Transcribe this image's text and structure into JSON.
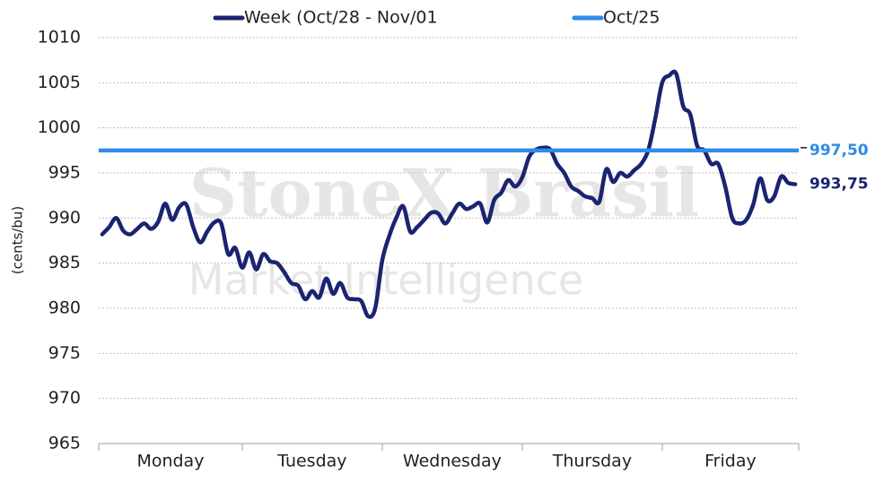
{
  "chart_data": {
    "type": "line",
    "y_axis_label": "(cents/bu)",
    "watermark": [
      "StoneX Brasil",
      "Market Intelligence"
    ],
    "ylim": [
      965,
      1010
    ],
    "yticks": [
      965,
      970,
      975,
      980,
      985,
      990,
      995,
      1000,
      1005,
      1010
    ],
    "grid": true,
    "legend": "top",
    "categories": [
      null,
      null,
      null,
      null,
      null,
      null,
      null,
      null,
      null,
      null,
      "Monday",
      null,
      null,
      null,
      null,
      null,
      null,
      null,
      null,
      null,
      null,
      null,
      null,
      null,
      null,
      null,
      null,
      null,
      null,
      null,
      "Tuesday",
      null,
      null,
      null,
      null,
      null,
      null,
      null,
      null,
      null,
      null,
      null,
      null,
      null,
      null,
      null,
      null,
      null,
      null,
      null,
      "Wednesday",
      null,
      null,
      null,
      null,
      null,
      null,
      null,
      null,
      null,
      null,
      null,
      null,
      null,
      null,
      null,
      null,
      null,
      null,
      null,
      "Thursday",
      null,
      null,
      null,
      null,
      null,
      null,
      null,
      null,
      null,
      null,
      null,
      null,
      null,
      null,
      null,
      null,
      null,
      null,
      null,
      "Friday",
      null,
      null,
      null,
      null,
      null,
      null,
      null,
      null,
      null
    ],
    "series": [
      {
        "name": "Week (Oct/28 - Nov/01",
        "color": "#1a2470",
        "values": [
          988.2,
          989,
          990,
          988.6,
          988.2,
          988.8,
          989.4,
          988.8,
          989.6,
          991.6,
          989.8,
          991.2,
          991.5,
          989,
          987.3,
          988.5,
          989.5,
          989.4,
          986,
          986.7,
          984.5,
          986.2,
          984.3,
          986,
          985.2,
          985,
          984,
          982.8,
          982.5,
          981,
          981.9,
          981.2,
          983.3,
          981.6,
          982.8,
          981.2,
          981,
          980.8,
          979.1,
          980,
          985.3,
          988,
          990,
          991.3,
          988.5,
          989,
          989.8,
          990.6,
          990.5,
          989.4,
          990.5,
          991.6,
          991,
          991.3,
          991.6,
          989.5,
          992,
          992.8,
          994.2,
          993.5,
          994.5,
          996.8,
          997.6,
          997.8,
          997.6,
          996,
          995,
          993.5,
          993,
          992.4,
          992.2,
          991.8,
          995.4,
          994,
          995,
          994.6,
          995.3,
          996,
          997.5,
          1001,
          1005,
          1005.8,
          1006,
          1002.4,
          1001.5,
          998,
          997.5,
          996,
          996,
          993.5,
          990,
          989.4,
          989.8,
          991.5,
          994.4,
          992,
          992.4,
          994.6,
          993.9,
          993.75
        ],
        "value_labels": [
          null,
          null,
          null,
          null,
          null,
          null,
          null,
          null,
          null,
          null,
          null,
          null,
          null,
          null,
          null,
          null,
          null,
          null,
          null,
          null,
          null,
          null,
          null,
          null,
          null,
          null,
          null,
          null,
          null,
          null,
          null,
          null,
          null,
          null,
          null,
          null,
          null,
          null,
          null,
          null,
          null,
          null,
          null,
          null,
          null,
          null,
          null,
          null,
          null,
          null,
          null,
          null,
          null,
          null,
          null,
          null,
          null,
          null,
          null,
          null,
          null,
          null,
          null,
          null,
          null,
          null,
          null,
          null,
          null,
          null,
          null,
          null,
          null,
          null,
          null,
          null,
          null,
          null,
          null,
          null,
          null,
          null,
          null,
          null,
          null,
          null,
          null,
          null,
          null,
          null,
          null,
          null,
          null,
          null,
          null,
          null,
          null,
          null,
          null,
          "993,75"
        ]
      },
      {
        "name": "Oct/25",
        "color": "#2e8be6",
        "value": 997.5,
        "value_label": "997,50"
      }
    ]
  }
}
